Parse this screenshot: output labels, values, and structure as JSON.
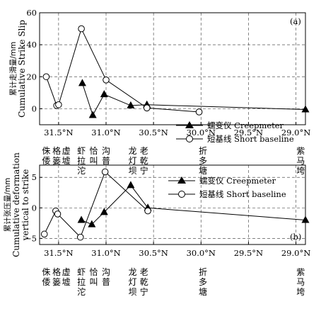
{
  "chart_data": [
    {
      "type": "line",
      "panel_label": "(a)",
      "ylabel": [
        "累计走滑量/mm",
        "Cumulative Strike Slip"
      ],
      "ylim": [
        -10,
        60
      ],
      "yticks": [
        0,
        20,
        40,
        60
      ],
      "xlim": [
        31.7,
        28.9
      ],
      "x_reversed": true,
      "xticks": [
        {
          "value": 31.5,
          "label": "31.5°N"
        },
        {
          "value": 31.0,
          "label": "31.0°N"
        },
        {
          "value": 30.5,
          "label": "30.5°N"
        },
        {
          "value": 30.0,
          "label": "30.0°N"
        },
        {
          "value": 29.5,
          "label": "29.5°N"
        },
        {
          "value": 29.0,
          "label": "29.0°N"
        }
      ],
      "grid": true,
      "legend_position": "center-right",
      "series": [
        {
          "name": "蠕变仪  Creepmeter",
          "marker": "filled-triangle",
          "x": [
            31.25,
            31.14,
            31.02,
            30.74,
            30.57,
            28.9
          ],
          "y": [
            16,
            -4,
            9,
            2,
            2.5,
            -0.5
          ]
        },
        {
          "name": "短基线  Short baseline",
          "marker": "open-circle",
          "x": [
            31.63,
            31.52,
            31.5,
            31.26,
            31.0,
            30.57,
            30.02
          ],
          "y": [
            20,
            2,
            2.5,
            50,
            18,
            0.5,
            -2
          ]
        }
      ]
    },
    {
      "type": "line",
      "panel_label": "(b)",
      "ylabel": [
        "累计张压量/mm",
        "Cumulative deformation",
        "vertical  to strike"
      ],
      "ylim": [
        -6,
        7
      ],
      "yticks": [
        -5,
        0,
        5
      ],
      "xlim": [
        31.7,
        28.9
      ],
      "x_reversed": true,
      "xticks": [
        {
          "value": 31.5,
          "label": "31.5°N"
        },
        {
          "value": 31.0,
          "label": "31.0°N"
        },
        {
          "value": 30.5,
          "label": "30.5°N"
        },
        {
          "value": 30.0,
          "label": "30.0°N"
        },
        {
          "value": 29.5,
          "label": "29.5°N"
        },
        {
          "value": 29.0,
          "label": "29.0°N"
        }
      ],
      "grid": true,
      "legend_position": "top-right",
      "series": [
        {
          "name": "蠕变仪  Creepmeter",
          "marker": "filled-triangle",
          "x": [
            31.26,
            31.15,
            31.02,
            30.74,
            30.56,
            28.9
          ],
          "y": [
            -2,
            -2.7,
            -0.7,
            3.7,
            0,
            -2
          ]
        },
        {
          "name": "短基线  Short baseline",
          "marker": "open-circle",
          "x": [
            31.65,
            31.53,
            31.51,
            31.27,
            31.01,
            30.56
          ],
          "y": [
            -4.3,
            -0.5,
            -1,
            -4.8,
            5.9,
            -0.5
          ]
        }
      ]
    }
  ],
  "place_labels": [
    {
      "lat": 31.63,
      "text": "侏倭"
    },
    {
      "lat": 31.52,
      "text": "格篓"
    },
    {
      "lat": 31.42,
      "text": "虚墟"
    },
    {
      "lat": 31.26,
      "text": "虾拉沱"
    },
    {
      "lat": 31.13,
      "text": "恰叫"
    },
    {
      "lat": 31.0,
      "text": "沟普"
    },
    {
      "lat": 30.72,
      "text": "龙灯坝"
    },
    {
      "lat": 30.6,
      "text": "老乾宁"
    },
    {
      "lat": 29.98,
      "text": "折多塘"
    },
    {
      "lat": 28.95,
      "text": "紫马垮"
    }
  ]
}
